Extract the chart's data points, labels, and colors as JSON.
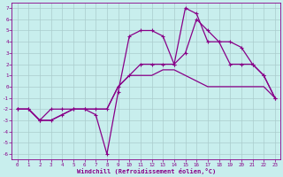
{
  "xlabel": "Windchill (Refroidissement éolien,°C)",
  "bg_color": "#c8eeed",
  "grid_color": "#aacccc",
  "line_color": "#880088",
  "xlim": [
    -0.5,
    23.5
  ],
  "ylim": [
    -6.5,
    7.5
  ],
  "xticks": [
    0,
    1,
    2,
    3,
    4,
    5,
    6,
    7,
    8,
    9,
    10,
    11,
    12,
    13,
    14,
    15,
    16,
    17,
    18,
    19,
    20,
    21,
    22,
    23
  ],
  "yticks": [
    7,
    6,
    5,
    4,
    3,
    2,
    1,
    0,
    -1,
    -2,
    -3,
    -4,
    -5,
    -6
  ],
  "line1_x": [
    0,
    1,
    2,
    3,
    4,
    5,
    6,
    7,
    8,
    9,
    10,
    11,
    12,
    13,
    14,
    15,
    16,
    17,
    18,
    19,
    20,
    21,
    22,
    23
  ],
  "line1_y": [
    -2,
    -2,
    -3,
    -3,
    -2.5,
    -2,
    -2,
    -2,
    -2,
    0,
    1,
    1,
    1,
    1.5,
    1.5,
    1,
    0.5,
    0,
    0,
    0,
    0,
    0,
    0,
    -1
  ],
  "line2_x": [
    0,
    1,
    2,
    3,
    4,
    5,
    6,
    7,
    8,
    9,
    10,
    11,
    12,
    13,
    14,
    15,
    16,
    17,
    18,
    19,
    20,
    21,
    22,
    23
  ],
  "line2_y": [
    -2,
    -2,
    -3,
    -2,
    -2,
    -2,
    -2,
    -2.5,
    -6,
    -0.5,
    4.5,
    5,
    5,
    4.5,
    2,
    7,
    6.5,
    4,
    4,
    2,
    2,
    2,
    1,
    -1
  ],
  "line3_x": [
    0,
    1,
    2,
    3,
    4,
    5,
    6,
    7,
    8,
    9,
    10,
    11,
    12,
    13,
    14,
    15,
    16,
    17,
    18,
    19,
    20,
    21,
    22,
    23
  ],
  "line3_y": [
    -2,
    -2,
    -3,
    -3,
    -2.5,
    -2,
    -2,
    -2,
    -2,
    0,
    1,
    2,
    2,
    2,
    2,
    3,
    6,
    5,
    4,
    4,
    3.5,
    2,
    1,
    -1
  ]
}
